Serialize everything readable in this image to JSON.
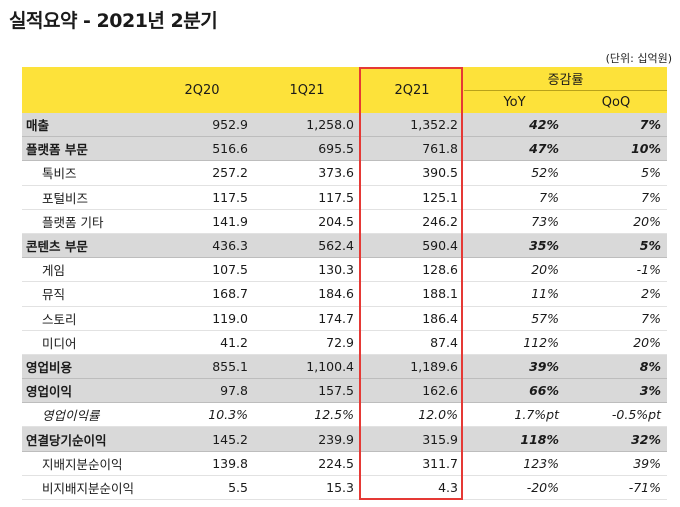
{
  "title": "실적요약 - 2021년 2분기",
  "unit_note": "(단위: 십억원)",
  "header": {
    "q1": "2Q20",
    "q2": "1Q21",
    "q3": "2Q21",
    "growth": "증감률",
    "yoy": "YoY",
    "qoq": "QoQ"
  },
  "rows": [
    {
      "label": "매출",
      "v1": "952.9",
      "v2": "1,258.0",
      "v3": "1,352.2",
      "yoy": "42%",
      "qoq": "7%"
    },
    {
      "label": "플랫폼 부문",
      "v1": "516.6",
      "v2": "695.5",
      "v3": "761.8",
      "yoy": "47%",
      "qoq": "10%"
    },
    {
      "label": "톡비즈",
      "v1": "257.2",
      "v2": "373.6",
      "v3": "390.5",
      "yoy": "52%",
      "qoq": "5%"
    },
    {
      "label": "포털비즈",
      "v1": "117.5",
      "v2": "117.5",
      "v3": "125.1",
      "yoy": "7%",
      "qoq": "7%"
    },
    {
      "label": "플랫폼 기타",
      "v1": "141.9",
      "v2": "204.5",
      "v3": "246.2",
      "yoy": "73%",
      "qoq": "20%"
    },
    {
      "label": "콘텐츠 부문",
      "v1": "436.3",
      "v2": "562.4",
      "v3": "590.4",
      "yoy": "35%",
      "qoq": "5%"
    },
    {
      "label": "게임",
      "v1": "107.5",
      "v2": "130.3",
      "v3": "128.6",
      "yoy": "20%",
      "qoq": "-1%"
    },
    {
      "label": "뮤직",
      "v1": "168.7",
      "v2": "184.6",
      "v3": "188.1",
      "yoy": "11%",
      "qoq": "2%"
    },
    {
      "label": "스토리",
      "v1": "119.0",
      "v2": "174.7",
      "v3": "186.4",
      "yoy": "57%",
      "qoq": "7%"
    },
    {
      "label": "미디어",
      "v1": "41.2",
      "v2": "72.9",
      "v3": "87.4",
      "yoy": "112%",
      "qoq": "20%"
    },
    {
      "label": "영업비용",
      "v1": "855.1",
      "v2": "1,100.4",
      "v3": "1,189.6",
      "yoy": "39%",
      "qoq": "8%"
    },
    {
      "label": "영업이익",
      "v1": "97.8",
      "v2": "157.5",
      "v3": "162.6",
      "yoy": "66%",
      "qoq": "3%"
    },
    {
      "label": "영업이익률",
      "v1": "10.3%",
      "v2": "12.5%",
      "v3": "12.0%",
      "yoy": "1.7%pt",
      "qoq": "-0.5%pt"
    },
    {
      "label": "연결당기순이익",
      "v1": "145.2",
      "v2": "239.9",
      "v3": "315.9",
      "yoy": "118%",
      "qoq": "32%"
    },
    {
      "label": "지배지분순이익",
      "v1": "139.8",
      "v2": "224.5",
      "v3": "311.7",
      "yoy": "123%",
      "qoq": "39%"
    },
    {
      "label": "비지배지분순이익",
      "v1": "5.5",
      "v2": "15.3",
      "v3": "4.3",
      "yoy": "-20%",
      "qoq": "-71%"
    }
  ]
}
